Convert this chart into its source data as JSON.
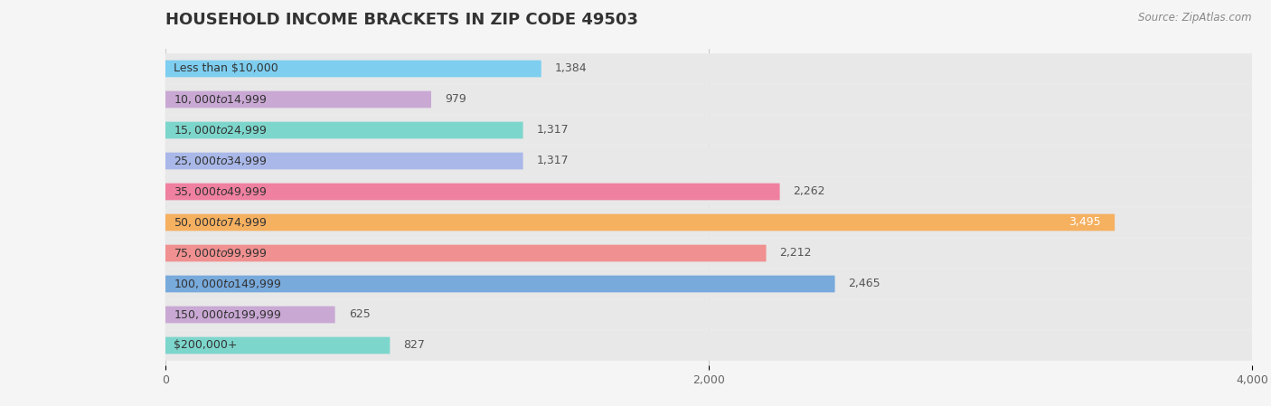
{
  "title": "HOUSEHOLD INCOME BRACKETS IN ZIP CODE 49503",
  "source": "Source: ZipAtlas.com",
  "categories": [
    "Less than $10,000",
    "$10,000 to $14,999",
    "$15,000 to $24,999",
    "$25,000 to $34,999",
    "$35,000 to $49,999",
    "$50,000 to $74,999",
    "$75,000 to $99,999",
    "$100,000 to $149,999",
    "$150,000 to $199,999",
    "$200,000+"
  ],
  "values": [
    1384,
    979,
    1317,
    1317,
    2262,
    3495,
    2212,
    2465,
    625,
    827
  ],
  "bar_colors": [
    "#7ECEF0",
    "#C9A8D4",
    "#7DD6CC",
    "#A9B8E8",
    "#F080A0",
    "#F5B060",
    "#F09090",
    "#78AADC",
    "#C9A8D4",
    "#7DD6CC"
  ],
  "xlim": [
    0,
    4000
  ],
  "xticks": [
    0,
    2000,
    4000
  ],
  "xtick_labels": [
    "0",
    "2,000",
    "4,000"
  ],
  "background_color": "#f5f5f5",
  "bar_background_color": "#e8e8e8",
  "title_fontsize": 13,
  "label_fontsize": 9,
  "value_fontsize": 9,
  "tick_fontsize": 9
}
